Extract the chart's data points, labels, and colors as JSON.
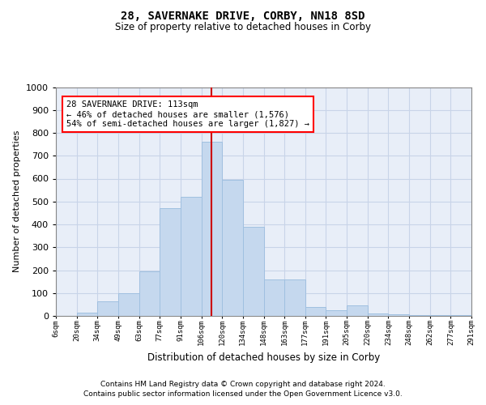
{
  "title1": "28, SAVERNAKE DRIVE, CORBY, NN18 8SD",
  "title2": "Size of property relative to detached houses in Corby",
  "xlabel": "Distribution of detached houses by size in Corby",
  "ylabel": "Number of detached properties",
  "categories": [
    "6sqm",
    "20sqm",
    "34sqm",
    "49sqm",
    "63sqm",
    "77sqm",
    "91sqm",
    "106sqm",
    "120sqm",
    "134sqm",
    "148sqm",
    "163sqm",
    "177sqm",
    "191sqm",
    "205sqm",
    "220sqm",
    "234sqm",
    "248sqm",
    "262sqm",
    "277sqm",
    "291sqm"
  ],
  "values": [
    0,
    13,
    65,
    100,
    195,
    470,
    520,
    760,
    595,
    390,
    160,
    160,
    40,
    25,
    45,
    10,
    8,
    3,
    2,
    5
  ],
  "bar_color": "#c5d8ee",
  "bar_edge_color": "#a0c0e0",
  "grid_color": "#c8d4e8",
  "bg_color": "#e8eef8",
  "vline_color": "#cc0000",
  "annotation_text": "28 SAVERNAKE DRIVE: 113sqm\n← 46% of detached houses are smaller (1,576)\n54% of semi-detached houses are larger (1,827) →",
  "footer1": "Contains HM Land Registry data © Crown copyright and database right 2024.",
  "footer2": "Contains public sector information licensed under the Open Government Licence v3.0.",
  "ylim": [
    0,
    1000
  ],
  "yticks": [
    0,
    100,
    200,
    300,
    400,
    500,
    600,
    700,
    800,
    900,
    1000
  ]
}
